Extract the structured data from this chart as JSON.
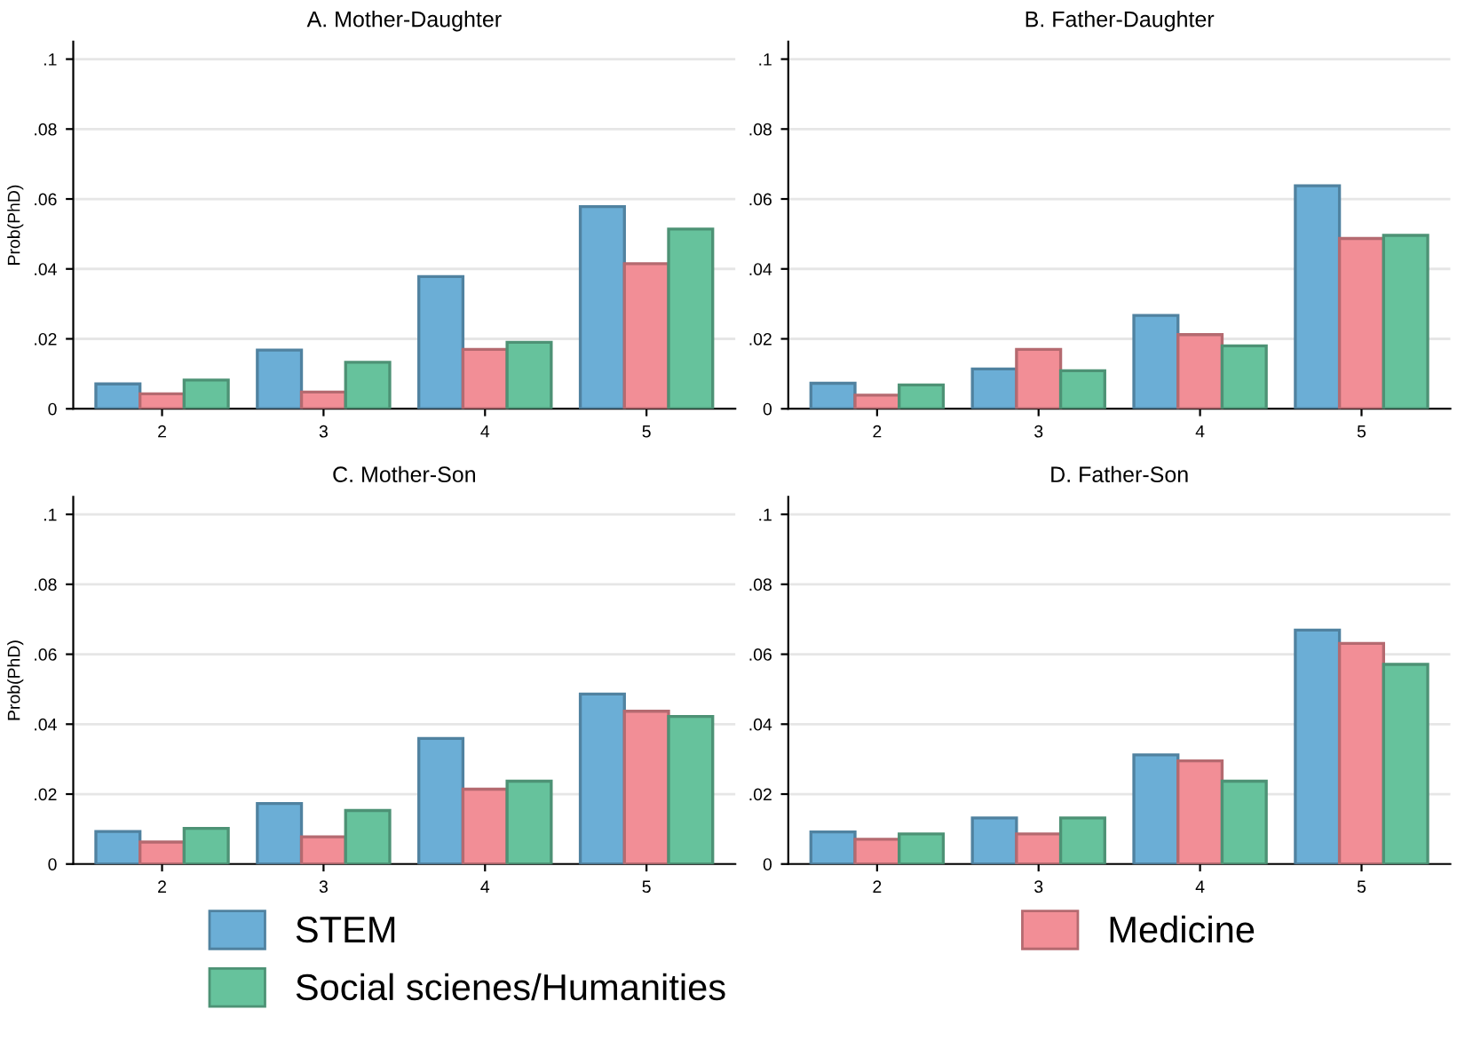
{
  "chart_data": [
    {
      "type": "bar",
      "title": "A. Mother-Daughter",
      "ylabel": "Prob(PhD)",
      "categories": [
        "2",
        "3",
        "4",
        "5"
      ],
      "series": [
        {
          "name": "STEM",
          "color": "#6baed6",
          "values": [
            0.0071,
            0.0168,
            0.0378,
            0.0578
          ]
        },
        {
          "name": "Medicine",
          "color": "#f28e96",
          "values": [
            0.0043,
            0.0048,
            0.017,
            0.0415
          ]
        },
        {
          "name": "Social scienes/Humanities",
          "color": "#66c29c",
          "values": [
            0.0082,
            0.0133,
            0.019,
            0.0514
          ]
        }
      ],
      "ylim": [
        0,
        0.105
      ],
      "yticks": [
        {
          "value": 0,
          "label": "0"
        },
        {
          "value": 0.02,
          "label": ".02"
        },
        {
          "value": 0.04,
          "label": ".04"
        },
        {
          "value": 0.06,
          "label": ".06"
        },
        {
          "value": 0.08,
          "label": ".08"
        },
        {
          "value": 0.1,
          "label": ".1"
        }
      ],
      "grid": "y",
      "legend": "bottom"
    },
    {
      "type": "bar",
      "title": "B. Father-Daughter",
      "categories": [
        "2",
        "3",
        "4",
        "5"
      ],
      "series": [
        {
          "color": "#6baed6",
          "values": [
            0.0073,
            0.0114,
            0.0267,
            0.0638
          ]
        },
        {
          "color": "#f28e96",
          "values": [
            0.0039,
            0.017,
            0.0212,
            0.0487
          ]
        },
        {
          "color": "#66c29c",
          "values": [
            0.0068,
            0.0109,
            0.018,
            0.0496
          ]
        }
      ],
      "ylim": [
        0,
        0.105
      ],
      "yticks": [
        {
          "value": 0,
          "label": "0"
        },
        {
          "value": 0.02,
          "label": ".02"
        },
        {
          "value": 0.04,
          "label": ".04"
        },
        {
          "value": 0.06,
          "label": ".06"
        },
        {
          "value": 0.08,
          "label": ".08"
        },
        {
          "value": 0.1,
          "label": ".1"
        }
      ],
      "grid": "y",
      "legend": "bottom"
    },
    {
      "type": "bar",
      "title": "C. Mother-Son",
      "ylabel": "Prob(PhD)",
      "categories": [
        "2",
        "3",
        "4",
        "5"
      ],
      "series": [
        {
          "color": "#6baed6",
          "values": [
            0.0093,
            0.0173,
            0.0359,
            0.0486
          ]
        },
        {
          "color": "#f28e96",
          "values": [
            0.0063,
            0.0078,
            0.0214,
            0.0437
          ]
        },
        {
          "color": "#66c29c",
          "values": [
            0.0102,
            0.0153,
            0.0237,
            0.0422
          ]
        }
      ],
      "ylim": [
        0,
        0.105
      ],
      "yticks": [
        {
          "value": 0,
          "label": "0"
        },
        {
          "value": 0.02,
          "label": ".02"
        },
        {
          "value": 0.04,
          "label": ".04"
        },
        {
          "value": 0.06,
          "label": ".06"
        },
        {
          "value": 0.08,
          "label": ".08"
        },
        {
          "value": 0.1,
          "label": ".1"
        }
      ],
      "grid": "y",
      "legend": "bottom"
    },
    {
      "type": "bar",
      "title": "D. Father-Son",
      "categories": [
        "2",
        "3",
        "4",
        "5"
      ],
      "series": [
        {
          "color": "#6baed6",
          "values": [
            0.0092,
            0.0132,
            0.0312,
            0.0669
          ]
        },
        {
          "color": "#f28e96",
          "values": [
            0.0071,
            0.0086,
            0.0295,
            0.0631
          ]
        },
        {
          "color": "#66c29c",
          "values": [
            0.0086,
            0.0132,
            0.0237,
            0.0571
          ]
        }
      ],
      "ylim": [
        0,
        0.105
      ],
      "yticks": [
        {
          "value": 0,
          "label": "0"
        },
        {
          "value": 0.02,
          "label": ".02"
        },
        {
          "value": 0.04,
          "label": ".04"
        },
        {
          "value": 0.06,
          "label": ".06"
        },
        {
          "value": 0.08,
          "label": ".08"
        },
        {
          "value": 0.1,
          "label": ".1"
        }
      ],
      "grid": "y",
      "legend": "bottom"
    }
  ]
}
